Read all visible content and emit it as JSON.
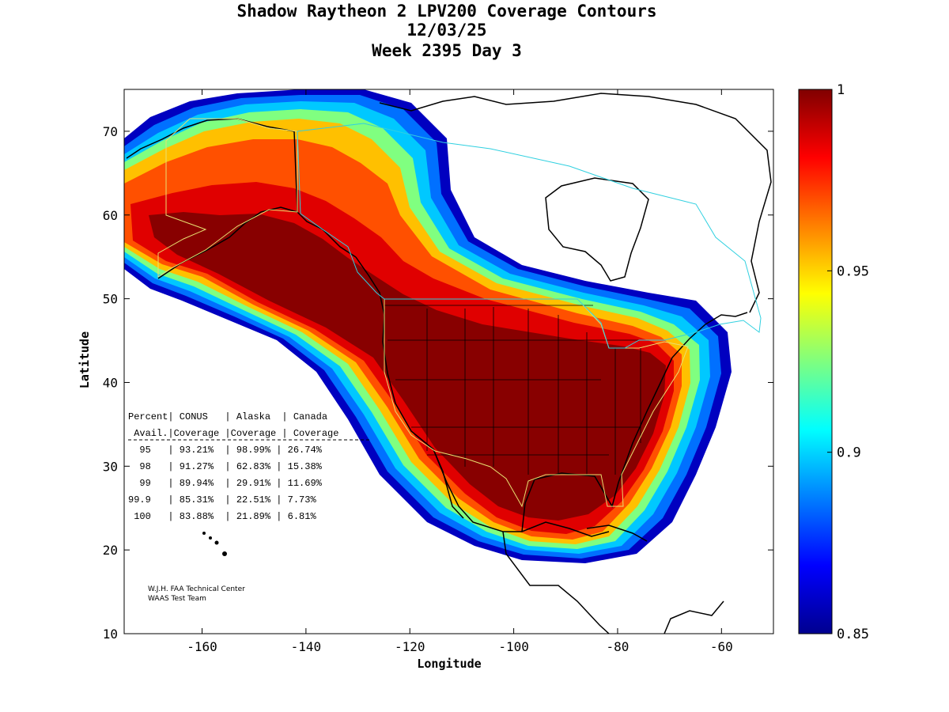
{
  "title": {
    "line1": "Shadow Raytheon 2 LPV200 Coverage Contours",
    "line2": "12/03/25",
    "line3": "Week 2395 Day 3"
  },
  "axes": {
    "xlabel": "Longitude",
    "ylabel": "Latitude",
    "xticks": [
      "-160",
      "-140",
      "-120",
      "-100",
      "-80",
      "-60"
    ],
    "yticks": [
      "10",
      "20",
      "30",
      "40",
      "50",
      "60",
      "70"
    ],
    "xlim": [
      -175,
      -50
    ],
    "ylim": [
      10,
      75
    ]
  },
  "colorbar": {
    "min": 0.85,
    "max": 1,
    "ticks": [
      "0.85",
      "0.9",
      "0.95",
      "1"
    ],
    "colormap": "jet"
  },
  "table": {
    "header1": "Percent| CONUS   | Alaska  | Canada",
    "header2": " Avail.|Coverage |Coverage | Coverage",
    "rows": [
      "  95   | 93.21%  | 98.99% | 26.74%",
      "  98   | 91.27%  | 62.83% | 15.38%",
      "  99   | 89.94%  | 29.91% | 11.69%",
      "99.9   | 85.31%  | 22.51% | 7.73%",
      " 100   | 83.88%  | 21.89% | 6.81%"
    ]
  },
  "credits": {
    "line1": "W.J.H. FAA Technical Center",
    "line2": "WAAS Test Team"
  },
  "colors": {
    "background": "#ffffff",
    "coast": "#000000",
    "conus_boundary": "#e8e070",
    "canada_boundary": "#30d0e0"
  }
}
